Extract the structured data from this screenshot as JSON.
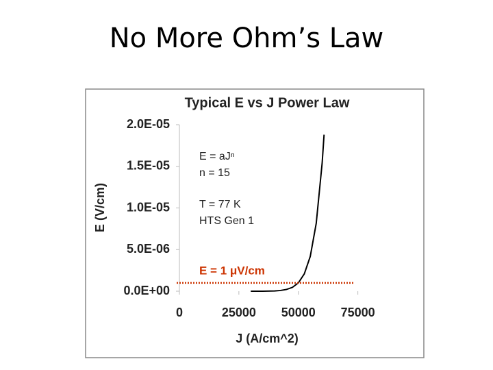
{
  "title": "No More Ohm’s Law",
  "chart_data": {
    "type": "line",
    "title": "Typical E vs J Power Law",
    "x_label": "J (A/cm^2)",
    "y_label": "E (V/cm)",
    "x": [
      30000,
      35000,
      40000,
      42500,
      45000,
      47500,
      50000,
      52500,
      55000,
      57500,
      60000,
      60800
    ],
    "series": [
      {
        "name": "E = aJⁿ",
        "color": "#000000",
        "values": [
          4.7e-10,
          4.7e-09,
          3.5e-08,
          8.7e-08,
          2.1e-07,
          4.6e-07,
          1e-06,
          2.08e-06,
          4.18e-06,
          8.14e-06,
          1.54e-05,
          1.88e-05
        ]
      }
    ],
    "xlim": [
      0,
      80000
    ],
    "xticks": [
      0,
      25000,
      50000,
      75000
    ],
    "ylim": [
      0,
      2e-05
    ],
    "yticks": [
      {
        "value": 0,
        "label": "0.0E+00"
      },
      {
        "value": 5e-06,
        "label": "5.0E-06"
      },
      {
        "value": 1e-05,
        "label": "1.0E-05"
      },
      {
        "value": 1.5e-05,
        "label": "1.5E-05"
      },
      {
        "value": 2e-05,
        "label": "2.0E-05"
      }
    ],
    "annotations": [
      "n = 15",
      "T = 77 K",
      "HTS Gen 1"
    ],
    "reference_line": {
      "value": 1e-06,
      "label": "E = 1 μV/cm",
      "color": "#cc3300"
    }
  }
}
